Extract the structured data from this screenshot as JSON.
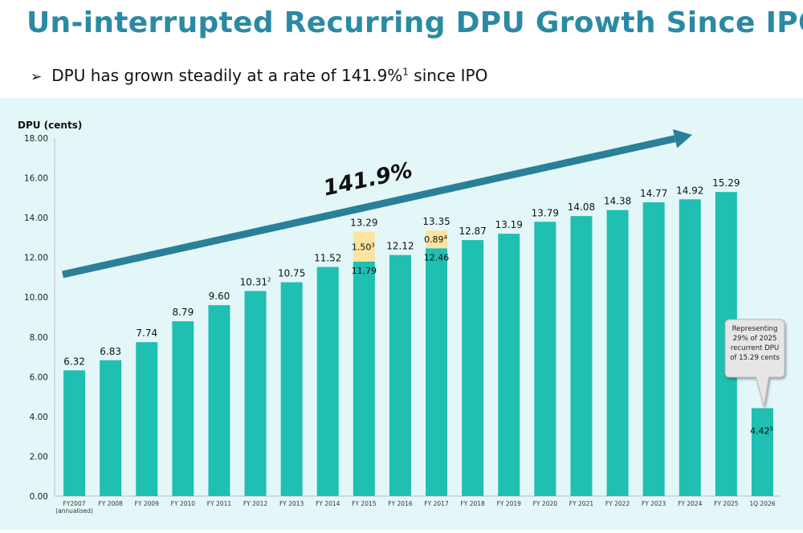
{
  "title": "Un-interrupted Recurring DPU Growth Since IPO",
  "bullet": {
    "text_prefix": "DPU has grown steadily at a rate of 141.9%",
    "footnote": "1",
    "text_suffix": " since IPO"
  },
  "colors": {
    "title": "#2b8aa3",
    "bar": "#1fbfb2",
    "special": "#fbe3a0",
    "arrow": "#2a8098",
    "panel": "#e4f7f8"
  },
  "chart_data": {
    "type": "bar",
    "ylabel": "DPU (cents)",
    "ylim": [
      0,
      18
    ],
    "yticks": [
      "0.00",
      "2.00",
      "4.00",
      "6.00",
      "8.00",
      "10.00",
      "12.00",
      "14.00",
      "16.00",
      "18.00"
    ],
    "categories": [
      "FY2007",
      "FY 2008",
      "FY 2009",
      "FY 2010",
      "FY 2011",
      "FY 2012",
      "FY 2013",
      "FY 2014",
      "FY 2015",
      "FY 2016",
      "FY 2017",
      "FY 2018",
      "FY 2019",
      "FY 2020",
      "FY 2021",
      "FY 2022",
      "FY 2023",
      "FY 2024",
      "FY 2025",
      "1Q 2026"
    ],
    "category_sublabels": [
      "(annualised)",
      "",
      "",
      "",
      "",
      "",
      "",
      "",
      "",
      "",
      "",
      "",
      "",
      "",
      "",
      "",
      "",
      "",
      "",
      ""
    ],
    "series": [
      {
        "values": [
          6.32,
          6.83,
          7.74,
          8.79,
          9.6,
          10.31,
          10.75,
          11.52,
          11.79,
          12.12,
          12.46,
          12.87,
          13.19,
          13.79,
          14.08,
          14.38,
          14.77,
          14.92,
          15.29,
          4.42
        ]
      },
      {
        "values": [
          null,
          null,
          null,
          null,
          null,
          null,
          null,
          null,
          1.5,
          null,
          0.89,
          null,
          null,
          null,
          null,
          null,
          null,
          null,
          null,
          null
        ]
      }
    ],
    "bar_labels": [
      "6.32",
      "6.83",
      "7.74",
      "8.79",
      "9.60",
      "10.31",
      "10.75",
      "11.52",
      "13.29",
      "12.12",
      "13.35",
      "12.87",
      "13.19",
      "13.79",
      "14.08",
      "14.38",
      "14.77",
      "14.92",
      "15.29",
      "4.42"
    ],
    "bar_label_footnotes": [
      "",
      "",
      "",
      "",
      "",
      "2",
      "",
      "",
      "",
      "",
      "",
      "",
      "",
      "",
      "",
      "",
      "",
      "",
      "",
      "5"
    ],
    "inner_labels": [
      {
        "index": 8,
        "base": "11.79",
        "special": "1.50",
        "special_footnote": "3"
      },
      {
        "index": 10,
        "base": "12.46",
        "special": "0.89",
        "special_footnote": "4"
      }
    ],
    "growth_label": "141.9%",
    "callout": {
      "index": 19,
      "lines": [
        "Representing",
        "29% of 2025",
        "recurrent DPU",
        "of 15.29 cents"
      ]
    },
    "grid": false,
    "legend": "none"
  }
}
